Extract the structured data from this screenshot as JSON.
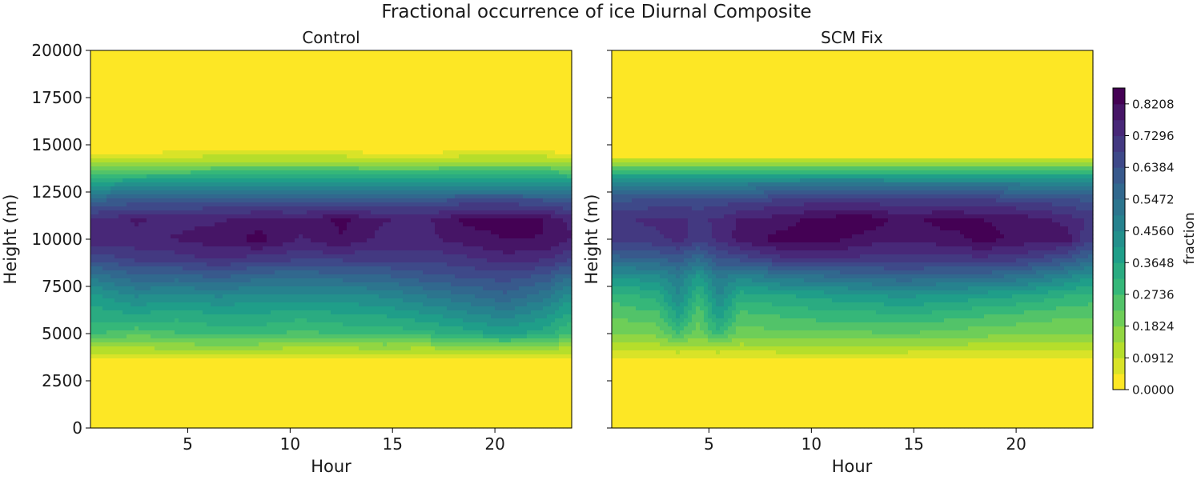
{
  "chart_data": {
    "type": "heatmap",
    "title": "Fractional occurrence of ice Diurnal Composite",
    "panels": [
      {
        "title": "Control",
        "xlabel": "Hour",
        "ylabel": "Height (m)",
        "xlim": [
          0.25,
          23.75
        ],
        "ylim": [
          0,
          20000
        ],
        "xticks": [
          "5",
          "10",
          "15",
          "20"
        ],
        "yticks": [
          "0",
          "2500",
          "5000",
          "7500",
          "10000",
          "12500",
          "15000",
          "17500",
          "20000"
        ],
        "hours": [
          0.5,
          2.5,
          4.5,
          6.5,
          8.5,
          10.5,
          12.5,
          14.5,
          16.5,
          18.5,
          20.5,
          22.5,
          23.5
        ],
        "heights": [
          0,
          3500,
          4200,
          5000,
          6000,
          7000,
          8000,
          9000,
          10000,
          11000,
          12000,
          13000,
          14000,
          14700,
          15200,
          20000
        ],
        "values": [
          [
            0,
            0.02,
            0.12,
            0.28,
            0.34,
            0.4,
            0.52,
            0.66,
            0.76,
            0.74,
            0.6,
            0.38,
            0.14,
            0.02,
            0,
            0
          ],
          [
            0,
            0.02,
            0.13,
            0.24,
            0.36,
            0.46,
            0.58,
            0.7,
            0.76,
            0.78,
            0.62,
            0.4,
            0.15,
            0.02,
            0,
            0
          ],
          [
            0,
            0.03,
            0.14,
            0.27,
            0.34,
            0.44,
            0.57,
            0.71,
            0.78,
            0.76,
            0.63,
            0.4,
            0.16,
            0.03,
            0,
            0
          ],
          [
            0,
            0.03,
            0.15,
            0.29,
            0.36,
            0.46,
            0.6,
            0.74,
            0.8,
            0.77,
            0.64,
            0.41,
            0.17,
            0.03,
            0,
            0
          ],
          [
            0,
            0.03,
            0.14,
            0.29,
            0.36,
            0.44,
            0.56,
            0.71,
            0.84,
            0.8,
            0.64,
            0.42,
            0.17,
            0.03,
            0,
            0
          ],
          [
            0,
            0.03,
            0.13,
            0.26,
            0.34,
            0.44,
            0.55,
            0.7,
            0.77,
            0.79,
            0.64,
            0.42,
            0.17,
            0.03,
            0,
            0
          ],
          [
            0,
            0.03,
            0.13,
            0.28,
            0.36,
            0.44,
            0.57,
            0.7,
            0.82,
            0.83,
            0.64,
            0.42,
            0.17,
            0.03,
            0,
            0
          ],
          [
            0,
            0.03,
            0.14,
            0.29,
            0.37,
            0.46,
            0.58,
            0.7,
            0.76,
            0.78,
            0.64,
            0.41,
            0.16,
            0.02,
            0,
            0
          ],
          [
            0,
            0.02,
            0.13,
            0.3,
            0.4,
            0.5,
            0.62,
            0.7,
            0.76,
            0.76,
            0.64,
            0.42,
            0.16,
            0.02,
            0,
            0
          ],
          [
            0,
            0.03,
            0.14,
            0.34,
            0.44,
            0.54,
            0.64,
            0.72,
            0.8,
            0.83,
            0.66,
            0.42,
            0.17,
            0.03,
            0,
            0
          ],
          [
            0,
            0.03,
            0.15,
            0.38,
            0.48,
            0.58,
            0.66,
            0.76,
            0.82,
            0.84,
            0.66,
            0.42,
            0.17,
            0.03,
            0,
            0
          ],
          [
            0,
            0.03,
            0.14,
            0.34,
            0.42,
            0.52,
            0.62,
            0.74,
            0.82,
            0.82,
            0.65,
            0.42,
            0.17,
            0.03,
            0,
            0
          ],
          [
            0,
            0.03,
            0.13,
            0.28,
            0.36,
            0.44,
            0.56,
            0.7,
            0.78,
            0.77,
            0.62,
            0.4,
            0.15,
            0.02,
            0,
            0
          ]
        ]
      },
      {
        "title": "SCM Fix",
        "xlabel": "Hour",
        "ylabel": "Height (m)",
        "xlim": [
          0.25,
          23.75
        ],
        "ylim": [
          0,
          20000
        ],
        "xticks": [
          "5",
          "10",
          "15",
          "20"
        ],
        "yticks": [
          "0",
          "2500",
          "5000",
          "7500",
          "10000",
          "12500",
          "15000",
          "17500",
          "20000"
        ],
        "hours": [
          0.5,
          2.5,
          3.5,
          4.5,
          5.5,
          6.5,
          8.5,
          10.5,
          12.5,
          14.5,
          16.5,
          18.5,
          20.5,
          22.5,
          23.5
        ],
        "heights": [
          0,
          3500,
          4200,
          5000,
          6000,
          7000,
          8000,
          9000,
          10000,
          11000,
          12000,
          13000,
          13800,
          14400,
          15000,
          20000
        ],
        "values": [
          [
            0,
            0.02,
            0.1,
            0.18,
            0.24,
            0.3,
            0.42,
            0.58,
            0.7,
            0.72,
            0.64,
            0.48,
            0.22,
            0.03,
            0,
            0
          ],
          [
            0,
            0.02,
            0.11,
            0.2,
            0.26,
            0.34,
            0.44,
            0.6,
            0.72,
            0.74,
            0.66,
            0.48,
            0.22,
            0.03,
            0,
            0
          ],
          [
            0,
            0.02,
            0.12,
            0.28,
            0.38,
            0.46,
            0.5,
            0.62,
            0.75,
            0.74,
            0.66,
            0.48,
            0.22,
            0.03,
            0,
            0
          ],
          [
            0,
            0.02,
            0.11,
            0.2,
            0.24,
            0.3,
            0.4,
            0.56,
            0.7,
            0.72,
            0.66,
            0.48,
            0.22,
            0.03,
            0,
            0
          ],
          [
            0,
            0.02,
            0.12,
            0.3,
            0.4,
            0.46,
            0.52,
            0.64,
            0.74,
            0.74,
            0.66,
            0.48,
            0.22,
            0.03,
            0,
            0
          ],
          [
            0,
            0.02,
            0.11,
            0.2,
            0.26,
            0.34,
            0.46,
            0.66,
            0.8,
            0.78,
            0.68,
            0.48,
            0.22,
            0.03,
            0,
            0
          ],
          [
            0,
            0.02,
            0.12,
            0.22,
            0.28,
            0.36,
            0.52,
            0.72,
            0.84,
            0.8,
            0.7,
            0.49,
            0.22,
            0.03,
            0,
            0
          ],
          [
            0,
            0.02,
            0.12,
            0.22,
            0.3,
            0.38,
            0.54,
            0.74,
            0.85,
            0.84,
            0.72,
            0.5,
            0.23,
            0.03,
            0,
            0
          ],
          [
            0,
            0.02,
            0.12,
            0.22,
            0.3,
            0.4,
            0.56,
            0.72,
            0.8,
            0.86,
            0.72,
            0.5,
            0.23,
            0.03,
            0,
            0
          ],
          [
            0,
            0.02,
            0.12,
            0.23,
            0.32,
            0.42,
            0.58,
            0.72,
            0.78,
            0.8,
            0.7,
            0.49,
            0.22,
            0.03,
            0,
            0
          ],
          [
            0,
            0.02,
            0.11,
            0.21,
            0.3,
            0.4,
            0.56,
            0.72,
            0.8,
            0.84,
            0.7,
            0.49,
            0.22,
            0.03,
            0,
            0
          ],
          [
            0,
            0.02,
            0.11,
            0.2,
            0.28,
            0.38,
            0.56,
            0.72,
            0.84,
            0.82,
            0.7,
            0.49,
            0.22,
            0.03,
            0,
            0
          ],
          [
            0,
            0.02,
            0.11,
            0.19,
            0.26,
            0.36,
            0.52,
            0.7,
            0.8,
            0.8,
            0.68,
            0.48,
            0.22,
            0.03,
            0,
            0
          ],
          [
            0,
            0.02,
            0.1,
            0.18,
            0.24,
            0.32,
            0.46,
            0.64,
            0.8,
            0.76,
            0.66,
            0.48,
            0.22,
            0.03,
            0,
            0
          ],
          [
            0,
            0.02,
            0.1,
            0.18,
            0.24,
            0.3,
            0.42,
            0.58,
            0.7,
            0.72,
            0.64,
            0.48,
            0.22,
            0.03,
            0,
            0
          ]
        ]
      }
    ],
    "colorbar": {
      "label": "fraction",
      "vmin": 0,
      "vmax": 0.8664,
      "levels": 19,
      "ticks": [
        "0.0000",
        "0.0912",
        "0.1824",
        "0.2736",
        "0.3648",
        "0.4560",
        "0.5472",
        "0.6384",
        "0.7296",
        "0.8208"
      ],
      "colormap": "viridis_r",
      "colormap_stops": [
        "#fde725",
        "#b5de2b",
        "#6ece58",
        "#35b779",
        "#1f9e89",
        "#26828e",
        "#31688e",
        "#3e4989",
        "#482878",
        "#440154"
      ]
    }
  }
}
